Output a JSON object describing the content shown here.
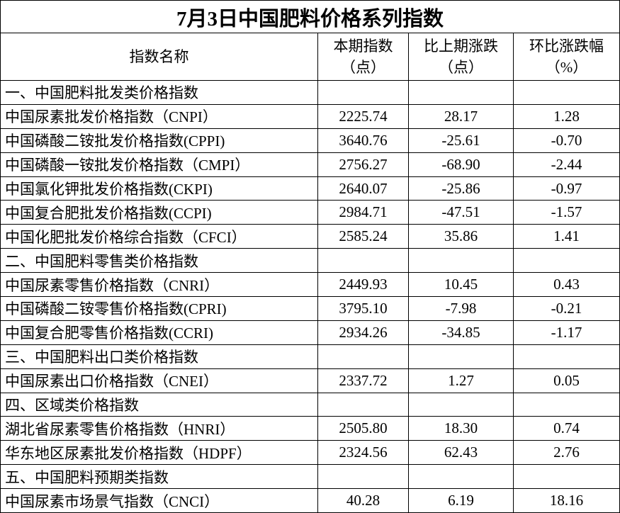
{
  "title": "7月3日中国肥料价格系列指数",
  "header": {
    "name": "指数名称",
    "columns": [
      [
        "本期指数",
        "（点）"
      ],
      [
        "比上期涨跌",
        "（点）"
      ],
      [
        "环比涨跌幅",
        "（%）"
      ]
    ]
  },
  "sections": [
    {
      "title": "一、中国肥料批发类价格指数",
      "rows": [
        [
          "中国尿素批发价格指数（CNPI）",
          "2225.74",
          "28.17",
          "1.28"
        ],
        [
          "中国磷酸二铵批发价格指数(CPPI)",
          "3640.76",
          "-25.61",
          "-0.70"
        ],
        [
          "中国磷酸一铵批发价格指数（CMPI）",
          "2756.27",
          "-68.90",
          "-2.44"
        ],
        [
          "中国氯化钾批发价格指数(CKPI)",
          "2640.07",
          "-25.86",
          "-0.97"
        ],
        [
          "中国复合肥批发价格指数(CCPI)",
          "2984.71",
          "-47.51",
          "-1.57"
        ],
        [
          "中国化肥批发价格综合指数（CFCI）",
          "2585.24",
          "35.86",
          "1.41"
        ]
      ]
    },
    {
      "title": "二、中国肥料零售类价格指数",
      "rows": [
        [
          "中国尿素零售价格指数（CNRI）",
          "2449.93",
          "10.45",
          "0.43"
        ],
        [
          "中国磷酸二铵零售价格指数(CPRI)",
          "3795.10",
          "-7.98",
          "-0.21"
        ],
        [
          "中国复合肥零售价格指数(CCRI)",
          "2934.26",
          "-34.85",
          "-1.17"
        ]
      ]
    },
    {
      "title": "三、中国肥料出口类价格指数",
      "rows": [
        [
          "中国尿素出口价格指数（CNEI）",
          "2337.72",
          "1.27",
          "0.05"
        ]
      ]
    },
    {
      "title": "四、区域类价格指数",
      "rows": [
        [
          "湖北省尿素零售价格指数（HNRI）",
          "2505.80",
          "18.30",
          "0.74"
        ],
        [
          "华东地区尿素批发价格指数（HDPF）",
          "2324.56",
          "62.43",
          "2.76"
        ]
      ]
    },
    {
      "title": "五、中国肥料预期类指数",
      "rows": [
        [
          "中国尿素市场景气指数（CNCI）",
          "40.28",
          "6.19",
          "18.16"
        ]
      ]
    }
  ]
}
